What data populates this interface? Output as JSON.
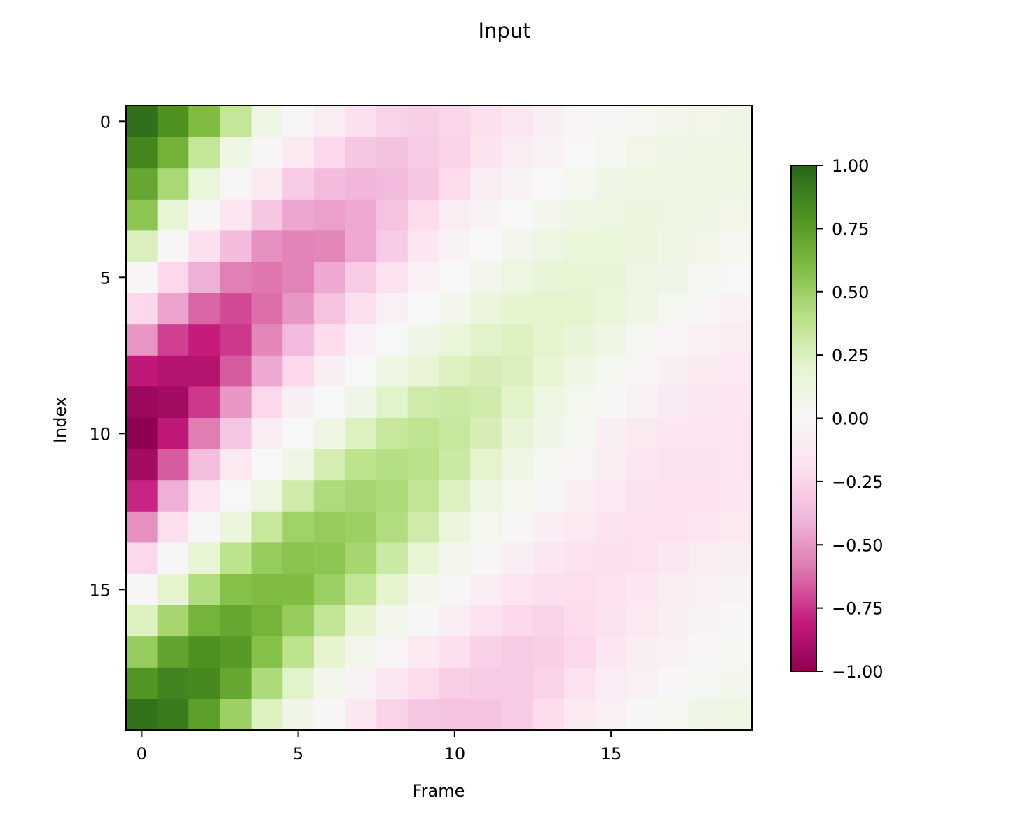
{
  "chart_data": {
    "type": "heatmap",
    "title": "Input",
    "xlabel": "Frame",
    "ylabel": "Index",
    "x_ticks": [
      0,
      5,
      10,
      15
    ],
    "y_ticks": [
      0,
      5,
      10,
      15
    ],
    "colormap": "PiYG",
    "vmin": -1.0,
    "vmax": 1.0,
    "colorbar_ticks": [
      1.0,
      0.75,
      0.5,
      0.25,
      0.0,
      -0.25,
      -0.5,
      -0.75,
      -1.0
    ],
    "colorbar_tick_labels": [
      "1.00",
      "0.75",
      "0.50",
      "0.25",
      "0.00",
      "−0.25",
      "−0.50",
      "−0.75",
      "−1.00"
    ],
    "colorbar_placement": "right",
    "grid": false,
    "n_rows": 20,
    "n_cols": 20,
    "values": [
      [
        0.95,
        0.8,
        0.6,
        0.35,
        0.1,
        -0.02,
        -0.1,
        -0.2,
        -0.26,
        -0.28,
        -0.25,
        -0.2,
        -0.14,
        -0.08,
        -0.03,
        0.01,
        0.04,
        0.06,
        0.07,
        0.08
      ],
      [
        0.85,
        0.65,
        0.35,
        0.1,
        -0.02,
        -0.12,
        -0.24,
        -0.32,
        -0.35,
        -0.3,
        -0.26,
        -0.17,
        -0.1,
        -0.04,
        0.0,
        0.04,
        0.07,
        0.09,
        0.1,
        0.1
      ],
      [
        0.7,
        0.45,
        0.15,
        -0.02,
        -0.12,
        -0.3,
        -0.37,
        -0.4,
        -0.38,
        -0.32,
        -0.22,
        -0.1,
        -0.04,
        0.0,
        0.05,
        0.09,
        0.11,
        0.12,
        0.11,
        0.1
      ],
      [
        0.55,
        0.18,
        -0.02,
        -0.15,
        -0.32,
        -0.45,
        -0.47,
        -0.44,
        -0.34,
        -0.22,
        -0.1,
        -0.04,
        0.0,
        0.06,
        0.1,
        0.12,
        0.13,
        0.11,
        0.09,
        0.07
      ],
      [
        0.25,
        -0.02,
        -0.2,
        -0.37,
        -0.52,
        -0.56,
        -0.55,
        -0.44,
        -0.3,
        -0.15,
        -0.04,
        0.0,
        0.06,
        0.12,
        0.15,
        0.15,
        0.13,
        0.1,
        0.07,
        0.04
      ],
      [
        -0.02,
        -0.24,
        -0.42,
        -0.57,
        -0.6,
        -0.56,
        -0.44,
        -0.3,
        -0.18,
        -0.05,
        0.0,
        0.06,
        0.12,
        0.16,
        0.18,
        0.16,
        0.12,
        0.08,
        0.03,
        0.0
      ],
      [
        -0.24,
        -0.46,
        -0.64,
        -0.7,
        -0.62,
        -0.5,
        -0.34,
        -0.2,
        -0.06,
        0.0,
        0.06,
        0.14,
        0.2,
        0.21,
        0.2,
        0.15,
        0.1,
        0.04,
        -0.02,
        -0.05
      ],
      [
        -0.5,
        -0.72,
        -0.8,
        -0.74,
        -0.55,
        -0.38,
        -0.22,
        -0.07,
        0.0,
        0.08,
        0.15,
        0.22,
        0.24,
        0.21,
        0.16,
        0.1,
        0.03,
        -0.03,
        -0.07,
        -0.1
      ],
      [
        -0.82,
        -0.86,
        -0.86,
        -0.66,
        -0.44,
        -0.24,
        -0.08,
        0.0,
        0.1,
        0.17,
        0.24,
        0.27,
        0.25,
        0.18,
        0.1,
        0.05,
        -0.03,
        -0.08,
        -0.12,
        -0.13
      ],
      [
        -0.95,
        -0.92,
        -0.74,
        -0.5,
        -0.24,
        -0.08,
        0.0,
        0.08,
        0.22,
        0.3,
        0.32,
        0.3,
        0.22,
        0.12,
        0.05,
        -0.01,
        -0.06,
        -0.11,
        -0.14,
        -0.15
      ],
      [
        -1.0,
        -0.82,
        -0.58,
        -0.32,
        -0.1,
        0.0,
        0.1,
        0.24,
        0.34,
        0.37,
        0.33,
        0.27,
        0.16,
        0.08,
        0.02,
        -0.08,
        -0.12,
        -0.15,
        -0.16,
        -0.16
      ],
      [
        -0.92,
        -0.66,
        -0.36,
        -0.12,
        0.0,
        0.1,
        0.28,
        0.38,
        0.41,
        0.39,
        0.32,
        0.21,
        0.1,
        0.04,
        -0.03,
        -0.1,
        -0.15,
        -0.17,
        -0.17,
        -0.16
      ],
      [
        -0.78,
        -0.42,
        -0.16,
        0.0,
        0.12,
        0.3,
        0.43,
        0.46,
        0.44,
        0.36,
        0.24,
        0.12,
        0.05,
        -0.02,
        -0.09,
        -0.13,
        -0.17,
        -0.19,
        -0.18,
        -0.15
      ],
      [
        -0.52,
        -0.2,
        -0.02,
        0.14,
        0.34,
        0.48,
        0.52,
        0.5,
        0.42,
        0.3,
        0.14,
        0.05,
        -0.02,
        -0.09,
        -0.12,
        -0.17,
        -0.19,
        -0.18,
        -0.15,
        -0.12
      ],
      [
        -0.24,
        -0.02,
        0.18,
        0.38,
        0.52,
        0.56,
        0.55,
        0.46,
        0.32,
        0.18,
        0.06,
        -0.02,
        -0.08,
        -0.14,
        -0.18,
        -0.2,
        -0.18,
        -0.14,
        -0.1,
        -0.08
      ],
      [
        -0.02,
        0.2,
        0.42,
        0.58,
        0.6,
        0.6,
        0.5,
        0.36,
        0.2,
        0.06,
        -0.02,
        -0.1,
        -0.16,
        -0.2,
        -0.21,
        -0.19,
        -0.15,
        -0.1,
        -0.06,
        -0.04
      ],
      [
        0.24,
        0.46,
        0.64,
        0.7,
        0.64,
        0.52,
        0.36,
        0.2,
        0.06,
        -0.02,
        -0.1,
        -0.18,
        -0.24,
        -0.26,
        -0.22,
        -0.17,
        -0.12,
        -0.08,
        -0.04,
        -0.02
      ],
      [
        0.52,
        0.72,
        0.8,
        0.76,
        0.58,
        0.38,
        0.2,
        0.06,
        -0.03,
        -0.12,
        -0.2,
        -0.27,
        -0.3,
        -0.28,
        -0.24,
        -0.15,
        -0.08,
        -0.05,
        -0.02,
        0.02
      ],
      [
        0.78,
        0.86,
        0.84,
        0.7,
        0.44,
        0.22,
        0.06,
        -0.04,
        -0.14,
        -0.22,
        -0.28,
        -0.3,
        -0.3,
        -0.26,
        -0.18,
        -0.1,
        -0.06,
        -0.02,
        0.03,
        0.06
      ],
      [
        0.94,
        0.9,
        0.74,
        0.5,
        0.24,
        0.08,
        -0.02,
        -0.14,
        -0.26,
        -0.32,
        -0.34,
        -0.34,
        -0.3,
        -0.22,
        -0.12,
        -0.06,
        -0.01,
        0.04,
        0.08,
        0.1
      ]
    ]
  }
}
